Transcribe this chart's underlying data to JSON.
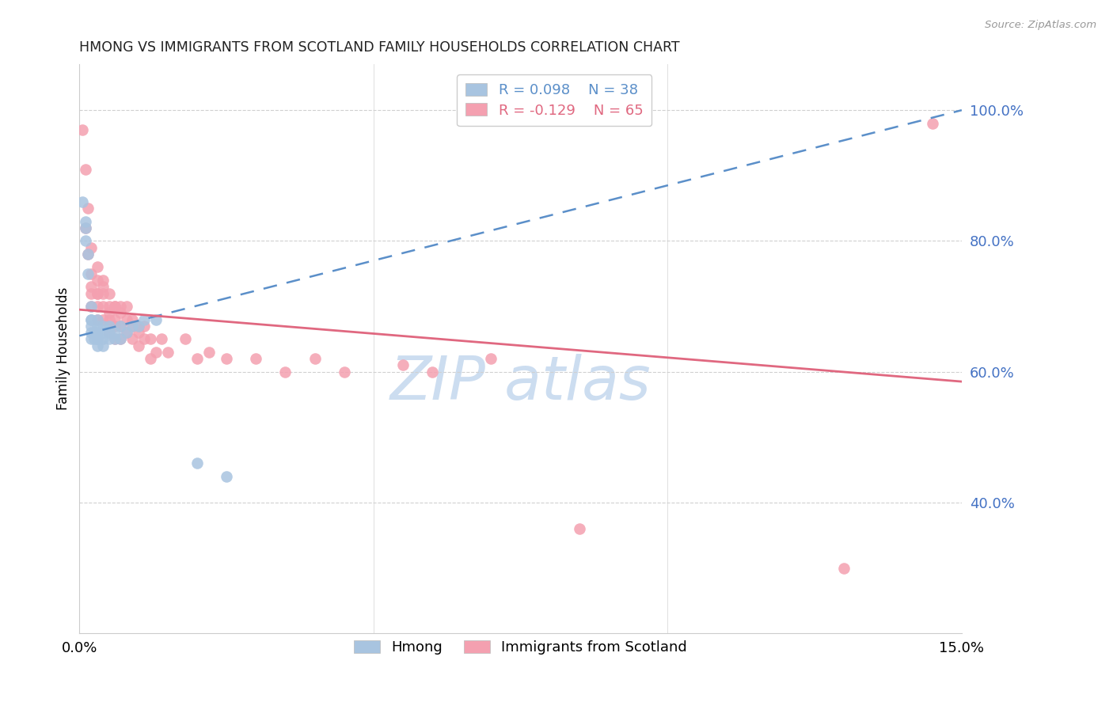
{
  "title": "HMONG VS IMMIGRANTS FROM SCOTLAND FAMILY HOUSEHOLDS CORRELATION CHART",
  "source": "Source: ZipAtlas.com",
  "ylabel": "Family Households",
  "x_min": 0.0,
  "x_max": 0.15,
  "y_min": 0.2,
  "y_max": 1.07,
  "y_ticks": [
    0.4,
    0.6,
    0.8,
    1.0
  ],
  "y_tick_labels": [
    "40.0%",
    "60.0%",
    "80.0%",
    "100.0%"
  ],
  "x_ticks": [
    0.0,
    0.05,
    0.1,
    0.15
  ],
  "x_tick_labels": [
    "0.0%",
    "",
    "",
    "15.0%"
  ],
  "legend_r_blue": "0.098",
  "legend_n_blue": "38",
  "legend_r_pink": "-0.129",
  "legend_n_pink": "65",
  "hmong_color": "#a8c4e0",
  "scotland_color": "#f4a0b0",
  "trend_blue_color": "#5b8fc9",
  "trend_pink_color": "#e06880",
  "watermark_color": "#ccddf0",
  "hmong_x": [
    0.0005,
    0.001,
    0.001,
    0.001,
    0.0015,
    0.0015,
    0.002,
    0.002,
    0.002,
    0.002,
    0.002,
    0.002,
    0.0025,
    0.0025,
    0.003,
    0.003,
    0.003,
    0.003,
    0.003,
    0.003,
    0.004,
    0.004,
    0.004,
    0.004,
    0.005,
    0.005,
    0.005,
    0.006,
    0.006,
    0.007,
    0.007,
    0.008,
    0.009,
    0.01,
    0.011,
    0.013,
    0.02,
    0.025
  ],
  "hmong_y": [
    0.86,
    0.83,
    0.82,
    0.8,
    0.75,
    0.78,
    0.68,
    0.7,
    0.66,
    0.68,
    0.65,
    0.67,
    0.65,
    0.66,
    0.65,
    0.66,
    0.67,
    0.68,
    0.65,
    0.64,
    0.64,
    0.66,
    0.65,
    0.67,
    0.65,
    0.66,
    0.67,
    0.65,
    0.66,
    0.65,
    0.67,
    0.66,
    0.67,
    0.67,
    0.68,
    0.68,
    0.46,
    0.44
  ],
  "scotland_x": [
    0.0005,
    0.001,
    0.001,
    0.0015,
    0.0015,
    0.002,
    0.002,
    0.002,
    0.002,
    0.002,
    0.003,
    0.003,
    0.003,
    0.003,
    0.003,
    0.003,
    0.004,
    0.004,
    0.004,
    0.004,
    0.004,
    0.005,
    0.005,
    0.005,
    0.005,
    0.005,
    0.006,
    0.006,
    0.006,
    0.006,
    0.006,
    0.007,
    0.007,
    0.007,
    0.007,
    0.008,
    0.008,
    0.008,
    0.009,
    0.009,
    0.009,
    0.01,
    0.01,
    0.01,
    0.011,
    0.011,
    0.012,
    0.012,
    0.013,
    0.014,
    0.015,
    0.018,
    0.02,
    0.022,
    0.025,
    0.03,
    0.035,
    0.04,
    0.045,
    0.055,
    0.06,
    0.07,
    0.085,
    0.13,
    0.145
  ],
  "scotland_y": [
    0.97,
    0.91,
    0.82,
    0.85,
    0.78,
    0.79,
    0.75,
    0.73,
    0.7,
    0.72,
    0.72,
    0.74,
    0.7,
    0.72,
    0.76,
    0.68,
    0.74,
    0.72,
    0.7,
    0.68,
    0.73,
    0.7,
    0.69,
    0.72,
    0.68,
    0.66,
    0.7,
    0.68,
    0.67,
    0.65,
    0.7,
    0.69,
    0.67,
    0.7,
    0.65,
    0.68,
    0.66,
    0.7,
    0.67,
    0.65,
    0.68,
    0.66,
    0.64,
    0.67,
    0.65,
    0.67,
    0.62,
    0.65,
    0.63,
    0.65,
    0.63,
    0.65,
    0.62,
    0.63,
    0.62,
    0.62,
    0.6,
    0.62,
    0.6,
    0.61,
    0.6,
    0.62,
    0.36,
    0.3,
    0.98
  ]
}
